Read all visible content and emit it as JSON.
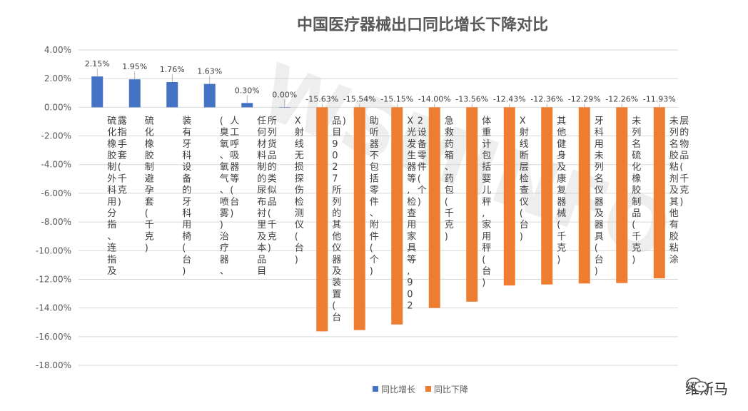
{
  "chart_data": {
    "type": "bar",
    "title": "中国医疗器械出口同比增长下降对比",
    "xlabel": "",
    "ylabel": "",
    "ylim": [
      -18,
      4
    ],
    "yticks": [
      "4.00%",
      "2.00%",
      "0.00%",
      "-2.00%",
      "-4.00%",
      "-6.00%",
      "-8.00%",
      "-10.00%",
      "-12.00%",
      "-14.00%",
      "-16.00%",
      "-18.00%"
    ],
    "grid": true,
    "legend_position": "bottom",
    "series_colors": {
      "increase": "#4472C4",
      "decrease": "#ED7D31"
    },
    "legend": [
      {
        "key": "increase",
        "name": "同比增长"
      },
      {
        "key": "decrease",
        "name": "同比下降"
      }
    ],
    "categories": [
      {
        "label": "硫化橡胶制外科用分指、连指及露指手套(千克)",
        "value": 2.15,
        "value_label": "2.15%",
        "series": "increase"
      },
      {
        "label": "硫化橡胶制避孕套(千克)",
        "value": 1.95,
        "value_label": "1.95%",
        "series": "increase"
      },
      {
        "label": "装有牙科设备的牙科用椅(台)",
        "value": 1.76,
        "value_label": "1.76%",
        "series": "increase"
      },
      {
        "label": "(臭氧、氧气、喷雾)治疗器、人工呼吸器等(台)",
        "value": 1.63,
        "value_label": "1.63%",
        "series": "increase"
      },
      {
        "label": "任何材料制的尿布衬里及本品目所列货品的类似品(千克)",
        "value": 0.3,
        "value_label": "0.30%",
        "series": "increase"
      },
      {
        "label": "X射线无损探伤检测仪(台)",
        "value": 0.0,
        "value_label": "0.00%",
        "series": "increase"
      },
      {
        "label": "品目9027所列的其他仪器及装置(台)",
        "value": -15.63,
        "value_label": "-15.63%",
        "series": "decrease"
      },
      {
        "label": "助听器不包括零件、附件(个)",
        "value": -15.54,
        "value_label": "-15.54%",
        "series": "decrease"
      },
      {
        "label": "X光发生器等,检查用家具等,9022设备零件(个)",
        "value": -15.15,
        "value_label": "-15.15%",
        "series": "decrease"
      },
      {
        "label": "急救药箱、药包(千克)",
        "value": -14.0,
        "value_label": "-14.00%",
        "series": "decrease"
      },
      {
        "label": "体重计包括婴儿秤,家用秤(台)",
        "value": -13.56,
        "value_label": "-13.56%",
        "series": "decrease"
      },
      {
        "label": "X射线断层检查仪(台)",
        "value": -12.43,
        "value_label": "-12.43%",
        "series": "decrease"
      },
      {
        "label": "其他健身及康复器械(千克)",
        "value": -12.36,
        "value_label": "-12.36%",
        "series": "decrease"
      },
      {
        "label": "牙科用未列名仪器及器具(台)",
        "value": -12.29,
        "value_label": "-12.29%",
        "series": "decrease"
      },
      {
        "label": "未列名硫化橡胶制品(千克)",
        "value": -12.26,
        "value_label": "-12.26%",
        "series": "decrease"
      },
      {
        "label": "未列名胶粘剂及其他有胶粘涂层的物品(千克)",
        "value": -11.93,
        "value_label": "-11.93%",
        "series": "decrease"
      }
    ],
    "watermark": "WSMINFO"
  },
  "brand": {
    "name": "维斯马",
    "icon": "wechat-icon"
  }
}
